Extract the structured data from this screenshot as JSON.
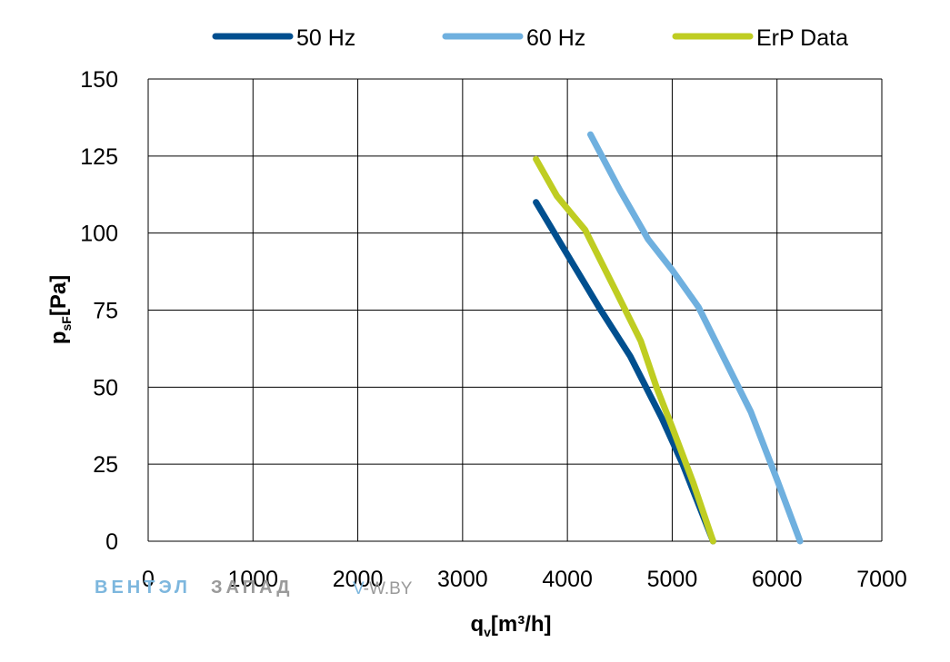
{
  "chart_data": {
    "type": "line",
    "xlabel": "q",
    "xlabel_sub": "v",
    "xlabel_unit": "[m³/h]",
    "ylabel": "p",
    "ylabel_sub": "sF",
    "ylabel_unit": "[Pa]",
    "xlim": [
      0,
      7000
    ],
    "ylim": [
      0,
      150
    ],
    "x_ticks": [
      0,
      1000,
      2000,
      3000,
      4000,
      5000,
      6000,
      7000
    ],
    "y_ticks": [
      0,
      25,
      50,
      75,
      100,
      125,
      150
    ],
    "grid": true,
    "legend_position": "top",
    "series": [
      {
        "name": "50 Hz",
        "color": "#004f8f",
        "points": [
          [
            3700,
            110
          ],
          [
            4000,
            93
          ],
          [
            4300,
            76
          ],
          [
            4600,
            60
          ],
          [
            4900,
            40
          ],
          [
            5100,
            25
          ],
          [
            5390,
            0
          ]
        ]
      },
      {
        "name": "60 Hz",
        "color": "#6fb0df",
        "points": [
          [
            4220,
            132
          ],
          [
            4500,
            114
          ],
          [
            4770,
            98
          ],
          [
            5000,
            88
          ],
          [
            5250,
            76
          ],
          [
            5500,
            59
          ],
          [
            5750,
            42
          ],
          [
            6000,
            20
          ],
          [
            6220,
            0
          ]
        ]
      },
      {
        "name": "ErP Data",
        "color": "#bfcd22",
        "points": [
          [
            3700,
            124
          ],
          [
            3900,
            112
          ],
          [
            4170,
            101
          ],
          [
            4450,
            82
          ],
          [
            4700,
            65
          ],
          [
            4850,
            50
          ],
          [
            5000,
            37
          ],
          [
            5200,
            19
          ],
          [
            5390,
            0
          ]
        ]
      }
    ]
  },
  "watermark": {
    "part1": "ВЕНТЭЛ",
    "part2": "ЗАПАД",
    "url_prefix": "V",
    "url_rest": "-W.BY"
  }
}
